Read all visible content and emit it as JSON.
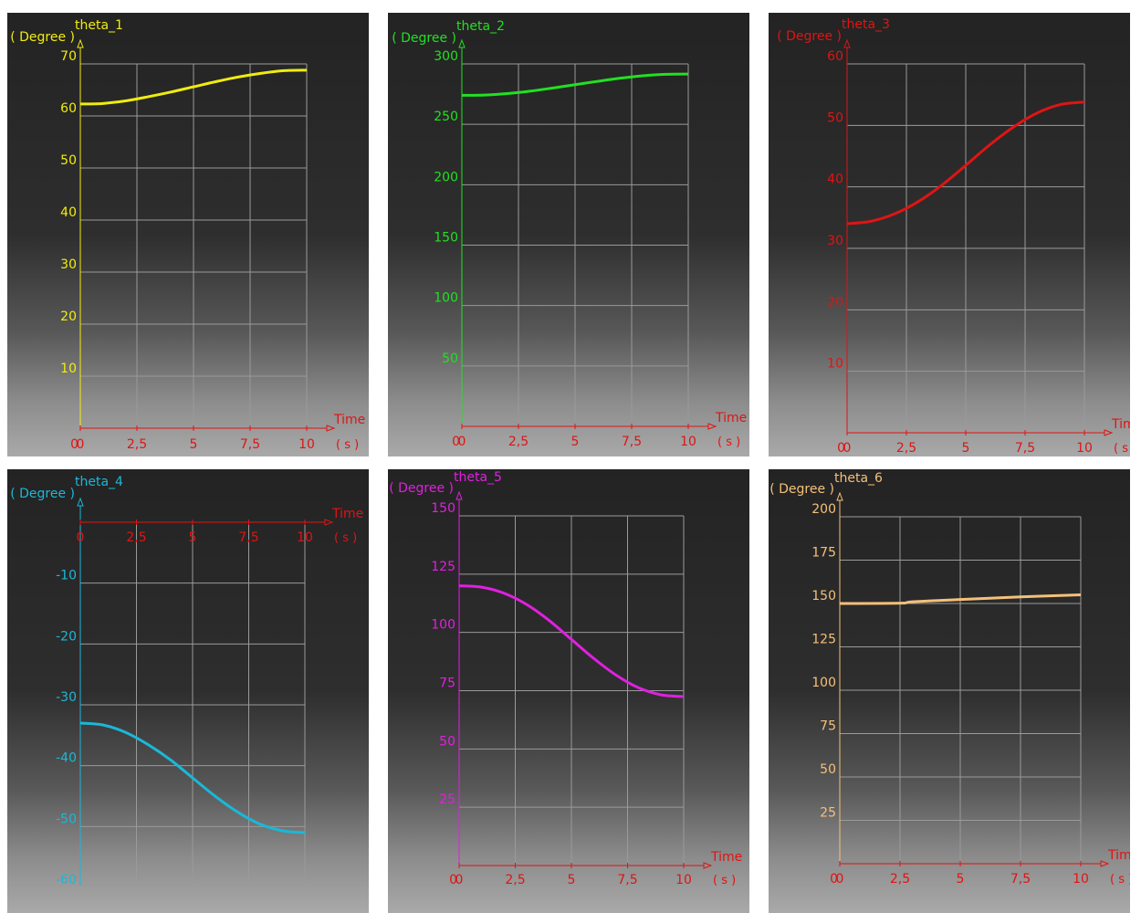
{
  "chart_data": [
    {
      "type": "line",
      "series": [
        {
          "name": "theta_1",
          "x": [
            0,
            1,
            2,
            3,
            4,
            5,
            6,
            7,
            8,
            9,
            10
          ],
          "y": [
            62.3,
            62.4,
            62.9,
            63.7,
            64.6,
            65.6,
            66.6,
            67.5,
            68.2,
            68.7,
            68.8
          ]
        }
      ],
      "ylabel": "( Degree )",
      "xlabel": "Time",
      "xunit": "( s )",
      "xticks": [
        "0",
        "2,5",
        "5",
        "7,5",
        "10"
      ],
      "yticks": [
        "10",
        "20",
        "30",
        "40",
        "50",
        "60",
        "70"
      ],
      "xlim": [
        0,
        10
      ],
      "ylim": [
        0,
        70
      ],
      "grid": true,
      "color": "#f0ec10"
    },
    {
      "type": "line",
      "series": [
        {
          "name": "theta_2",
          "x": [
            0,
            1,
            2,
            3,
            4,
            5,
            6,
            7,
            8,
            9,
            10
          ],
          "y": [
            274,
            274.2,
            275.4,
            277.4,
            280,
            282.8,
            285.6,
            288.2,
            290.2,
            291.4,
            291.6
          ]
        }
      ],
      "ylabel": "( Degree )",
      "xlabel": "Time",
      "xunit": "( s )",
      "xticks": [
        "0",
        "2,5",
        "5",
        "7,5",
        "10"
      ],
      "yticks": [
        "50",
        "100",
        "150",
        "200",
        "250",
        "300"
      ],
      "xlim": [
        0,
        10
      ],
      "ylim": [
        0,
        300
      ],
      "grid": true,
      "color": "#22e022"
    },
    {
      "type": "line",
      "series": [
        {
          "name": "theta_3",
          "x": [
            0,
            1,
            2,
            3,
            4,
            5,
            6,
            7,
            8,
            9,
            10
          ],
          "y": [
            34,
            34.4,
            35.6,
            37.6,
            40.3,
            43.5,
            46.8,
            49.7,
            52.0,
            53.4,
            53.8
          ]
        }
      ],
      "ylabel": "( Degree )",
      "xlabel": "Time",
      "xunit": "( s )",
      "xticks": [
        "0",
        "2,5",
        "5",
        "7,5",
        "10"
      ],
      "yticks": [
        "10",
        "20",
        "30",
        "40",
        "50",
        "60"
      ],
      "xlim": [
        0,
        10
      ],
      "ylim": [
        0,
        60
      ],
      "grid": true,
      "color": "#e01414"
    },
    {
      "type": "line",
      "series": [
        {
          "name": "theta_4",
          "x": [
            0,
            1,
            2,
            3,
            4,
            5,
            6,
            7,
            8,
            9,
            10
          ],
          "y": [
            -33,
            -33.3,
            -34.5,
            -36.5,
            -39.0,
            -42.0,
            -45.0,
            -47.6,
            -49.6,
            -50.7,
            -51.0
          ]
        }
      ],
      "ylabel": "( Degree )",
      "xlabel": "Time",
      "xunit": "( s )",
      "xticks": [
        "0",
        "2,5",
        "5",
        "7,5",
        "10"
      ],
      "yticks": [
        "-10",
        "-20",
        "-30",
        "-40",
        "-50",
        "-60"
      ],
      "xlim": [
        0,
        10
      ],
      "ylim": [
        -60,
        0
      ],
      "grid": true,
      "color": "#1ab8d8",
      "axis_color": "#e01414"
    },
    {
      "type": "line",
      "series": [
        {
          "name": "theta_5",
          "x": [
            0,
            1,
            2,
            3,
            4,
            5,
            6,
            7,
            8,
            9,
            10
          ],
          "y": [
            120,
            119.4,
            116.8,
            112.0,
            105.2,
            97.0,
            88.8,
            81.6,
            76.2,
            73.2,
            72.5
          ]
        }
      ],
      "ylabel": "( Degree )",
      "xlabel": "Time",
      "xunit": "( s )",
      "xticks": [
        "0",
        "2,5",
        "5",
        "7,5",
        "10"
      ],
      "yticks": [
        "25",
        "50",
        "75",
        "100",
        "125",
        "150"
      ],
      "xlim": [
        0,
        10
      ],
      "ylim": [
        0,
        150
      ],
      "grid": true,
      "color": "#e020e0"
    },
    {
      "type": "line",
      "series": [
        {
          "name": "theta_6",
          "x": [
            0,
            2.5,
            3,
            5,
            7.5,
            10
          ],
          "y": [
            150,
            150.2,
            151,
            152.3,
            153.8,
            155
          ]
        }
      ],
      "ylabel": "( Degree )",
      "xlabel": "Time",
      "xunit": "( s )",
      "xticks": [
        "0",
        "2,5",
        "5",
        "7,5",
        "10"
      ],
      "yticks": [
        "25",
        "50",
        "75",
        "100",
        "125",
        "150",
        "175",
        "200"
      ],
      "xlim": [
        0,
        10
      ],
      "ylim": [
        0,
        200
      ],
      "grid": true,
      "color": "#f5c07a"
    }
  ]
}
